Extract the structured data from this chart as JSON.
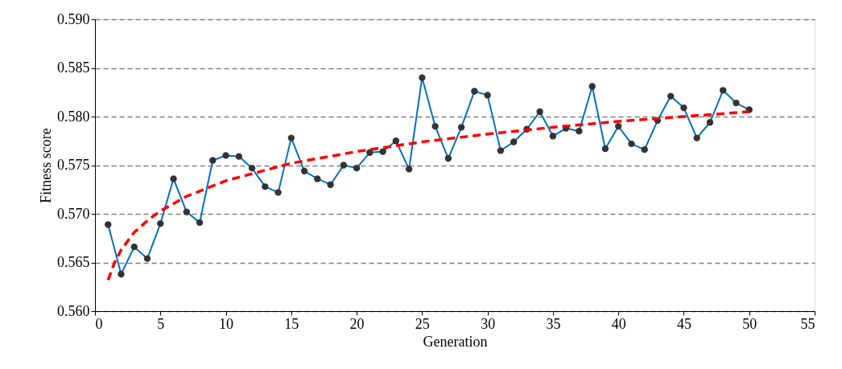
{
  "chart_data": {
    "type": "line",
    "xlabel": "Generation",
    "ylabel": "Fitness score",
    "xlim": [
      0,
      55
    ],
    "xticks": [
      0,
      5,
      10,
      15,
      20,
      25,
      30,
      35,
      40,
      45,
      50,
      55
    ],
    "ylim": [
      0.56,
      0.59
    ],
    "yticks": [
      {
        "value": 0.56,
        "label": "0.560"
      },
      {
        "value": 0.565,
        "label": "0.565"
      },
      {
        "value": 0.57,
        "label": "0.570"
      },
      {
        "value": 0.575,
        "label": "0.575"
      },
      {
        "value": 0.58,
        "label": "0.580"
      },
      {
        "value": 0.585,
        "label": "0.585"
      },
      {
        "value": 0.59,
        "label": "0.590"
      }
    ],
    "grid": "y",
    "x": [
      1,
      2,
      3,
      4,
      5,
      6,
      7,
      8,
      9,
      10,
      11,
      12,
      13,
      14,
      15,
      16,
      17,
      18,
      19,
      20,
      21,
      22,
      23,
      24,
      25,
      26,
      27,
      28,
      29,
      30,
      31,
      32,
      33,
      34,
      35,
      36,
      37,
      38,
      39,
      40,
      41,
      42,
      43,
      44,
      45,
      46,
      47,
      48,
      49,
      50
    ],
    "series": [
      {
        "color": "#0070c0",
        "marker": "circle",
        "line_style": "solid",
        "values": [
          0.5689,
          0.5638,
          0.5666,
          0.5654,
          0.569,
          0.5736,
          0.5702,
          0.5691,
          0.5755,
          0.576,
          0.5759,
          0.5747,
          0.5728,
          0.5722,
          0.5778,
          0.5744,
          0.5736,
          0.573,
          0.575,
          0.5747,
          0.5763,
          0.5764,
          0.5775,
          0.5746,
          0.584,
          0.579,
          0.5757,
          0.5789,
          0.5826,
          0.5822,
          0.5765,
          0.5774,
          0.5787,
          0.5805,
          0.578,
          0.5788,
          0.5785,
          0.5831,
          0.5767,
          0.579,
          0.5772,
          0.5766,
          0.5796,
          0.5821,
          0.5809,
          0.5778,
          0.5794,
          0.5827,
          0.5814,
          0.5807
        ]
      },
      {
        "color": "#ff0000",
        "marker": "none",
        "line_style": "dashed",
        "x": [
          1,
          1.5,
          2,
          3,
          4,
          5,
          7,
          10,
          15,
          20,
          25,
          30,
          35,
          40,
          45,
          50
        ],
        "values": [
          0.5632,
          0.565,
          0.5663,
          0.5681,
          0.5693,
          0.5703,
          0.5718,
          0.5734,
          0.5752,
          0.5764,
          0.5774,
          0.5782,
          0.5789,
          0.5795,
          0.58,
          0.5805
        ]
      }
    ]
  }
}
